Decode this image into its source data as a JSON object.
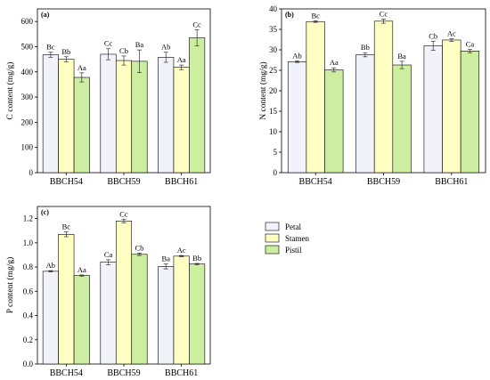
{
  "legend": {
    "items": [
      {
        "name": "Petal",
        "color": "#f2f2fb"
      },
      {
        "name": "Stamen",
        "color": "#ffffc4"
      },
      {
        "name": "Pistil",
        "color": "#cdeea0"
      }
    ]
  },
  "chart_data": [
    {
      "type": "bar",
      "panel_label": "(a)",
      "ylabel": "C content (mg/g)",
      "ylim": [
        0,
        650
      ],
      "yticks": [
        0,
        100,
        200,
        300,
        400,
        500,
        600
      ],
      "categories": [
        "BBCH54",
        "BBCH59",
        "BBCH61"
      ],
      "series": [
        {
          "name": "Petal",
          "values": [
            468,
            470,
            458
          ],
          "errors": [
            10,
            22,
            20
          ],
          "labels": [
            "Bc",
            "Cc",
            "Ab"
          ]
        },
        {
          "name": "Stamen",
          "values": [
            450,
            445,
            418
          ],
          "errors": [
            10,
            18,
            9
          ],
          "labels": [
            "Bb",
            "Cb",
            "Aa"
          ]
        },
        {
          "name": "Pistil",
          "values": [
            378,
            442,
            535
          ],
          "errors": [
            18,
            45,
            32
          ],
          "labels": [
            "Aa",
            "Ba",
            "Cc"
          ]
        }
      ]
    },
    {
      "type": "bar",
      "panel_label": "(b)",
      "ylabel": "N content (mg/g)",
      "ylim": [
        0,
        40
      ],
      "yticks": [
        0,
        5,
        10,
        15,
        20,
        25,
        30,
        35,
        40
      ],
      "categories": [
        "BBCH54",
        "BBCH59",
        "BBCH61"
      ],
      "series": [
        {
          "name": "Petal",
          "values": [
            27.1,
            28.8,
            31.0
          ],
          "errors": [
            0.2,
            0.5,
            1.1
          ],
          "labels": [
            "Ab",
            "Bb",
            "Cb"
          ]
        },
        {
          "name": "Stamen",
          "values": [
            36.9,
            37.0,
            32.4
          ],
          "errors": [
            0.2,
            0.5,
            0.3
          ],
          "labels": [
            "Bc",
            "Cc",
            "Ac"
          ]
        },
        {
          "name": "Pistil",
          "values": [
            25.1,
            26.3,
            29.7
          ],
          "errors": [
            0.5,
            0.9,
            0.4
          ],
          "labels": [
            "Aa",
            "Ba",
            "Ca"
          ]
        }
      ]
    },
    {
      "type": "bar",
      "panel_label": "(c)",
      "ylabel": "P content (mg/g)",
      "ylim": [
        0,
        1.3
      ],
      "yticks": [
        "0.0",
        "0.2",
        "0.4",
        "0.6",
        "0.8",
        "1.0",
        "1.2"
      ],
      "categories": [
        "BBCH54",
        "BBCH59",
        "BBCH61"
      ],
      "series": [
        {
          "name": "Petal",
          "values": [
            0.765,
            0.84,
            0.805
          ],
          "errors": [
            0.005,
            0.02,
            0.02
          ],
          "labels": [
            "Ab",
            "Ca",
            "Ba"
          ]
        },
        {
          "name": "Stamen",
          "values": [
            1.07,
            1.18,
            0.89
          ],
          "errors": [
            0.02,
            0.015,
            0.005
          ],
          "labels": [
            "Bc",
            "Cc",
            "Ac"
          ]
        },
        {
          "name": "Pistil",
          "values": [
            0.73,
            0.905,
            0.825
          ],
          "errors": [
            0.005,
            0.01,
            0.005
          ],
          "labels": [
            "Aa",
            "Cb",
            "Bb"
          ]
        }
      ]
    }
  ]
}
